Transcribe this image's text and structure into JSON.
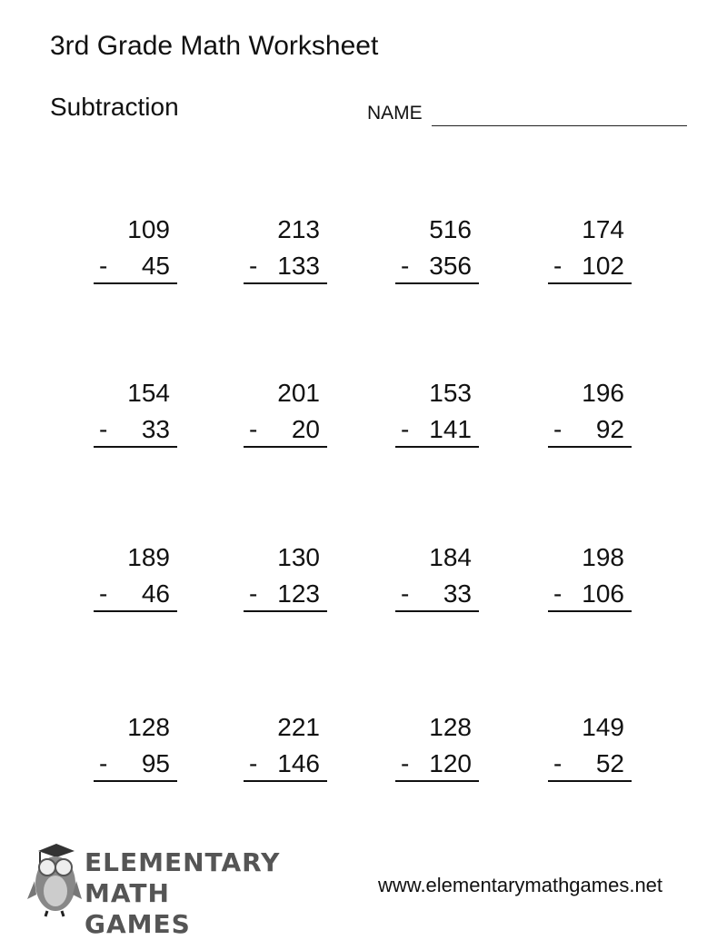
{
  "title": "3rd Grade Math Worksheet",
  "subtitle": "Subtraction",
  "name_label": "NAME",
  "operator": "-",
  "problems": [
    {
      "top": "109",
      "bottom": "45"
    },
    {
      "top": "213",
      "bottom": "133"
    },
    {
      "top": "516",
      "bottom": "356"
    },
    {
      "top": "174",
      "bottom": "102"
    },
    {
      "top": "154",
      "bottom": "33"
    },
    {
      "top": "201",
      "bottom": "20"
    },
    {
      "top": "153",
      "bottom": "141"
    },
    {
      "top": "196",
      "bottom": "92"
    },
    {
      "top": "189",
      "bottom": "46"
    },
    {
      "top": "130",
      "bottom": "123"
    },
    {
      "top": "184",
      "bottom": "33"
    },
    {
      "top": "198",
      "bottom": "106"
    },
    {
      "top": "128",
      "bottom": "95"
    },
    {
      "top": "221",
      "bottom": "146"
    },
    {
      "top": "128",
      "bottom": "120"
    },
    {
      "top": "149",
      "bottom": "52"
    }
  ],
  "logo": {
    "line1": "ELEMENTARY",
    "line2": "MATH GAMES",
    "icon": "owl-graduation-cap-icon"
  },
  "url": "www.elementarymathgames.net"
}
